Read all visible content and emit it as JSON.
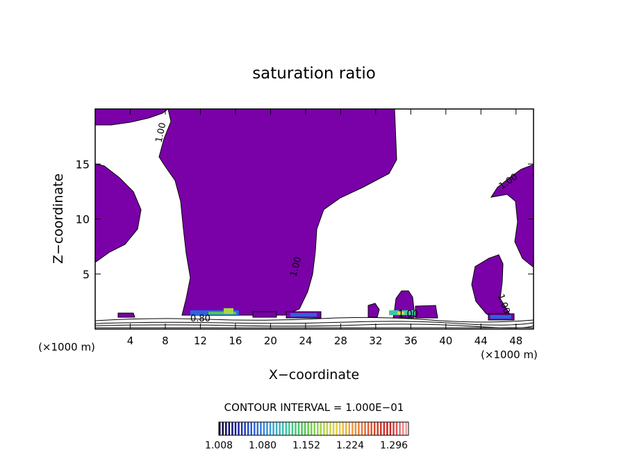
{
  "chart_data": {
    "type": "heatmap",
    "title": "saturation ratio",
    "xlabel": "X−coordinate",
    "ylabel": "Z−coordinate",
    "x_unit_left": "(×1000 m)",
    "x_unit_right": "(×1000 m)",
    "xlim": [
      0,
      50
    ],
    "ylim": [
      0,
      20
    ],
    "x_ticks": [
      4,
      8,
      12,
      16,
      20,
      24,
      28,
      32,
      36,
      40,
      44,
      48
    ],
    "y_ticks": [
      5,
      10,
      15
    ],
    "contour_interval_label": "CONTOUR INTERVAL = 1.000E−01",
    "fill_color": "#7a00a8",
    "contour_labels": [
      {
        "text": "1.00",
        "x": 7.8,
        "z": 17.8,
        "angle": -78
      },
      {
        "text": "1.00",
        "x": 23.2,
        "z": 5.6,
        "angle": -75
      },
      {
        "text": "1.00",
        "x": 47.3,
        "z": 13.2,
        "angle": -35
      },
      {
        "text": "1.00",
        "x": 46.3,
        "z": 2.2,
        "angle": 70
      },
      {
        "text": "1.00",
        "x": 35.7,
        "z": 1.1,
        "angle": 0
      },
      {
        "text": "0.80",
        "x": 12.0,
        "z": 0.7,
        "angle": 0
      }
    ],
    "colorbar": {
      "ticks": [
        "1.008",
        "1.080",
        "1.152",
        "1.224",
        "1.296"
      ],
      "range": [
        1.008,
        1.32
      ],
      "colors": [
        "#0a0030",
        "#1a1a9a",
        "#2a64e0",
        "#3aa0d8",
        "#40c8a0",
        "#50c850",
        "#a8d848",
        "#e8d040",
        "#f09040",
        "#e05030",
        "#c82020",
        "#f0a0a0"
      ]
    }
  }
}
